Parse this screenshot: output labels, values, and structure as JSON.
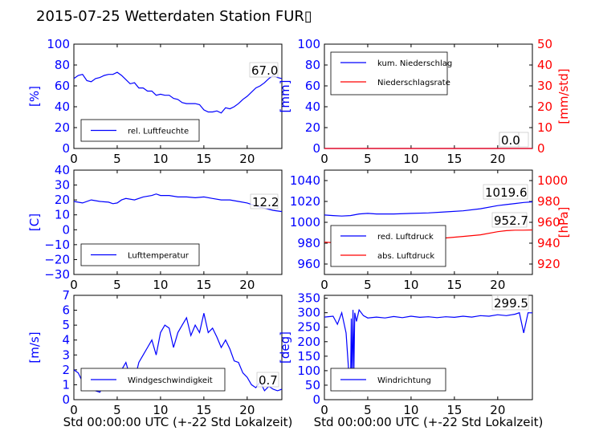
{
  "title": "2015-07-25 Wetterdaten Station FUR▯",
  "colors": {
    "blue": "#0000ff",
    "red": "#ff0000",
    "lightblue": "#8080ff"
  },
  "chart_data": [
    {
      "id": "humidity",
      "type": "line",
      "ylabel": "[%]",
      "ylim": [
        0,
        100
      ],
      "yticks": [
        "0",
        "20",
        "40",
        "60",
        "80",
        "100"
      ],
      "xlim": [
        0,
        24
      ],
      "xticks": [
        "0",
        "5",
        "10",
        "15",
        "20"
      ],
      "legend": [
        "rel. Luftfeuchte"
      ],
      "legend_position": "lower-left",
      "annotations": [
        "67.0"
      ],
      "series": [
        {
          "name": "rel. Luftfeuchte",
          "color": "#0000ff",
          "x": [
            0,
            0.5,
            1,
            1.5,
            2,
            2.5,
            3,
            3.5,
            4,
            4.5,
            5,
            5.5,
            6,
            6.5,
            7,
            7.5,
            8,
            8.5,
            9,
            9.5,
            10,
            10.5,
            11,
            11.5,
            12,
            12.5,
            13,
            13.5,
            14,
            14.5,
            15,
            15.5,
            16,
            16.5,
            17,
            17.5,
            18,
            18.5,
            19,
            19.5,
            20,
            20.5,
            21,
            21.5,
            22,
            22.5,
            23,
            23.5,
            24
          ],
          "y": [
            67,
            70,
            71,
            65,
            64,
            67,
            68,
            70,
            71,
            71,
            73,
            70,
            66,
            62,
            63,
            58,
            58,
            55,
            55,
            51,
            52,
            51,
            51,
            48,
            47,
            44,
            43,
            43,
            43,
            42,
            37,
            35,
            35,
            36,
            34,
            39,
            38,
            40,
            43,
            47,
            50,
            54,
            58,
            60,
            63,
            67,
            70,
            68,
            67
          ]
        }
      ]
    },
    {
      "id": "rain",
      "type": "line",
      "ylabel": "[mm]",
      "ylim": [
        0,
        100
      ],
      "yticks": [
        "0",
        "20",
        "40",
        "60",
        "80",
        "100"
      ],
      "ylabel2": "[mm/std]",
      "ylim2": [
        0,
        50
      ],
      "yticks2": [
        "0",
        "10",
        "20",
        "30",
        "40",
        "50"
      ],
      "xlim": [
        0,
        24
      ],
      "xticks": [
        "0",
        "5",
        "10",
        "15",
        "20"
      ],
      "legend": [
        "kum. Niederschlag",
        "Niederschlagsrate"
      ],
      "legend_position": "upper-left",
      "annotations": [
        "0.0",
        "0.0"
      ],
      "series": [
        {
          "name": "kum. Niederschlag",
          "color": "#0000ff",
          "x": [
            0,
            24
          ],
          "y": [
            0,
            0
          ]
        },
        {
          "name": "Niederschlagsrate",
          "color": "#ff0000",
          "x": [
            0,
            24
          ],
          "y": [
            0,
            0
          ]
        }
      ]
    },
    {
      "id": "temperature",
      "type": "line",
      "ylabel": "[C]",
      "ylim": [
        -30,
        40
      ],
      "yticks": [
        "−30",
        "−20",
        "−10",
        "0",
        "10",
        "20",
        "30",
        "40"
      ],
      "xlim": [
        0,
        24
      ],
      "xticks": [
        "0",
        "5",
        "10",
        "15",
        "20"
      ],
      "legend": [
        "Lufttemperatur"
      ],
      "legend_position": "lower-left",
      "annotations": [
        "12.2"
      ],
      "series": [
        {
          "name": "Lufttemperatur",
          "color": "#0000ff",
          "x": [
            0,
            1,
            2,
            3,
            4,
            4.5,
            5,
            5.5,
            6,
            7,
            8,
            9,
            9.5,
            10,
            11,
            12,
            13,
            14,
            15,
            16,
            17,
            18,
            19,
            20,
            21,
            22,
            23,
            24
          ],
          "y": [
            19,
            18,
            20,
            19,
            18.5,
            17.5,
            18,
            20,
            21,
            20,
            22,
            23,
            24,
            23,
            23,
            22,
            22,
            21.5,
            22,
            21,
            20,
            20,
            19,
            18,
            16,
            14.5,
            13,
            12.2
          ]
        }
      ]
    },
    {
      "id": "pressure",
      "type": "line",
      "ylabel": "",
      "ylim": [
        950,
        1050
      ],
      "yticks": [
        "960",
        "980",
        "1000",
        "1020",
        "1040"
      ],
      "ylabel2": "[hPa]",
      "ylim2": [
        910,
        1010
      ],
      "yticks2": [
        "920",
        "940",
        "960",
        "980",
        "1000"
      ],
      "xlim": [
        0,
        24
      ],
      "xticks": [
        "0",
        "5",
        "10",
        "15",
        "20"
      ],
      "legend": [
        "red. Luftdruck",
        "abs. Luftdruck"
      ],
      "legend_position": "lower-left",
      "annotations": [
        "1019.6",
        "952.7"
      ],
      "series": [
        {
          "name": "red. Luftdruck",
          "color": "#0000ff",
          "x": [
            0,
            1,
            2,
            3,
            4,
            5,
            6,
            8,
            10,
            12,
            14,
            16,
            18,
            20,
            21,
            22,
            23,
            24
          ],
          "y": [
            1007,
            1006.5,
            1006,
            1006.5,
            1008,
            1008.5,
            1008,
            1008,
            1008.5,
            1009,
            1010,
            1011,
            1013,
            1016,
            1017,
            1018,
            1019,
            1019.6
          ]
        },
        {
          "name": "abs. Luftdruck",
          "color": "#ff0000",
          "x": [
            0,
            1,
            2,
            3,
            4,
            5,
            6,
            8,
            10,
            12,
            14,
            16,
            18,
            20,
            21,
            22,
            23,
            24
          ],
          "y": [
            941,
            940.5,
            940,
            941,
            942,
            942,
            942,
            942.5,
            943,
            944,
            945,
            946.5,
            948,
            951,
            952,
            952.5,
            952.5,
            952.7
          ]
        }
      ]
    },
    {
      "id": "windspeed",
      "type": "line",
      "ylabel": "[m/s]",
      "ylim": [
        0,
        7
      ],
      "yticks": [
        "0",
        "1",
        "2",
        "3",
        "4",
        "5",
        "6",
        "7"
      ],
      "xlabel": "Std 00:00:00 UTC (+-22 Std Lokalzeit)",
      "xlim": [
        0,
        24
      ],
      "xticks": [
        "0",
        "5",
        "10",
        "15",
        "20"
      ],
      "legend": [
        "Windgeschwindigkeit"
      ],
      "legend_position": "lower-center",
      "annotations": [
        "0.7"
      ],
      "series": [
        {
          "name": "Windgeschwindigkeit",
          "color": "#0000ff",
          "x": [
            0,
            0.5,
            1,
            1.5,
            2,
            2.5,
            3,
            3.5,
            4,
            4.5,
            5,
            5.5,
            6,
            6.5,
            7,
            7.5,
            8,
            8.5,
            9,
            9.5,
            10,
            10.5,
            11,
            11.5,
            12,
            12.5,
            13,
            13.5,
            14,
            14.5,
            15,
            15.5,
            16,
            16.5,
            17,
            17.5,
            18,
            18.5,
            19,
            19.5,
            20,
            20.5,
            21,
            21.5,
            22,
            22.5,
            23,
            23.5,
            24
          ],
          "y": [
            2,
            1.8,
            1.2,
            1.6,
            0.8,
            0.6,
            0.5,
            1.2,
            1.4,
            0.8,
            1,
            2,
            2.5,
            1.5,
            1.3,
            2.5,
            3,
            3.5,
            4,
            3,
            4.5,
            5,
            4.8,
            3.5,
            4.5,
            5,
            5.5,
            4.3,
            5,
            4.5,
            5.8,
            4.5,
            4.8,
            4.2,
            3.5,
            4,
            3.4,
            2.6,
            2.5,
            1.8,
            1.5,
            1,
            0.8,
            1.2,
            0.6,
            0.9,
            0.7,
            0.6,
            0.7
          ]
        }
      ]
    },
    {
      "id": "winddir",
      "type": "line",
      "ylabel": "[deg]",
      "ylim": [
        0,
        360
      ],
      "yticks": [
        "0",
        "50",
        "100",
        "150",
        "200",
        "250",
        "300",
        "350"
      ],
      "xlabel": "Std 00:00:00 UTC (+-22 Std Lokalzeit)",
      "xlim": [
        0,
        24
      ],
      "xticks": [
        "0",
        "5",
        "10",
        "15",
        "20"
      ],
      "legend": [
        "Windrichtung"
      ],
      "legend_position": "lower-left",
      "annotations": [
        "299.5"
      ],
      "series": [
        {
          "name": "Windrichtung",
          "color": "#0000ff",
          "x": [
            0,
            1,
            1.5,
            2,
            2.5,
            2.8,
            3,
            3.1,
            3.2,
            3.3,
            3.4,
            3.5,
            3.7,
            4,
            4.5,
            5,
            6,
            7,
            8,
            9,
            10,
            11,
            12,
            13,
            14,
            15,
            16,
            17,
            18,
            19,
            20,
            21,
            22,
            22.5,
            23,
            23.5,
            24
          ],
          "y": [
            285,
            288,
            260,
            300,
            230,
            100,
            30,
            280,
            40,
            310,
            100,
            300,
            270,
            310,
            290,
            282,
            285,
            282,
            287,
            283,
            288,
            284,
            286,
            283,
            286,
            284,
            288,
            285,
            290,
            288,
            293,
            290,
            295,
            300,
            230,
            300,
            299.5
          ]
        }
      ]
    }
  ]
}
